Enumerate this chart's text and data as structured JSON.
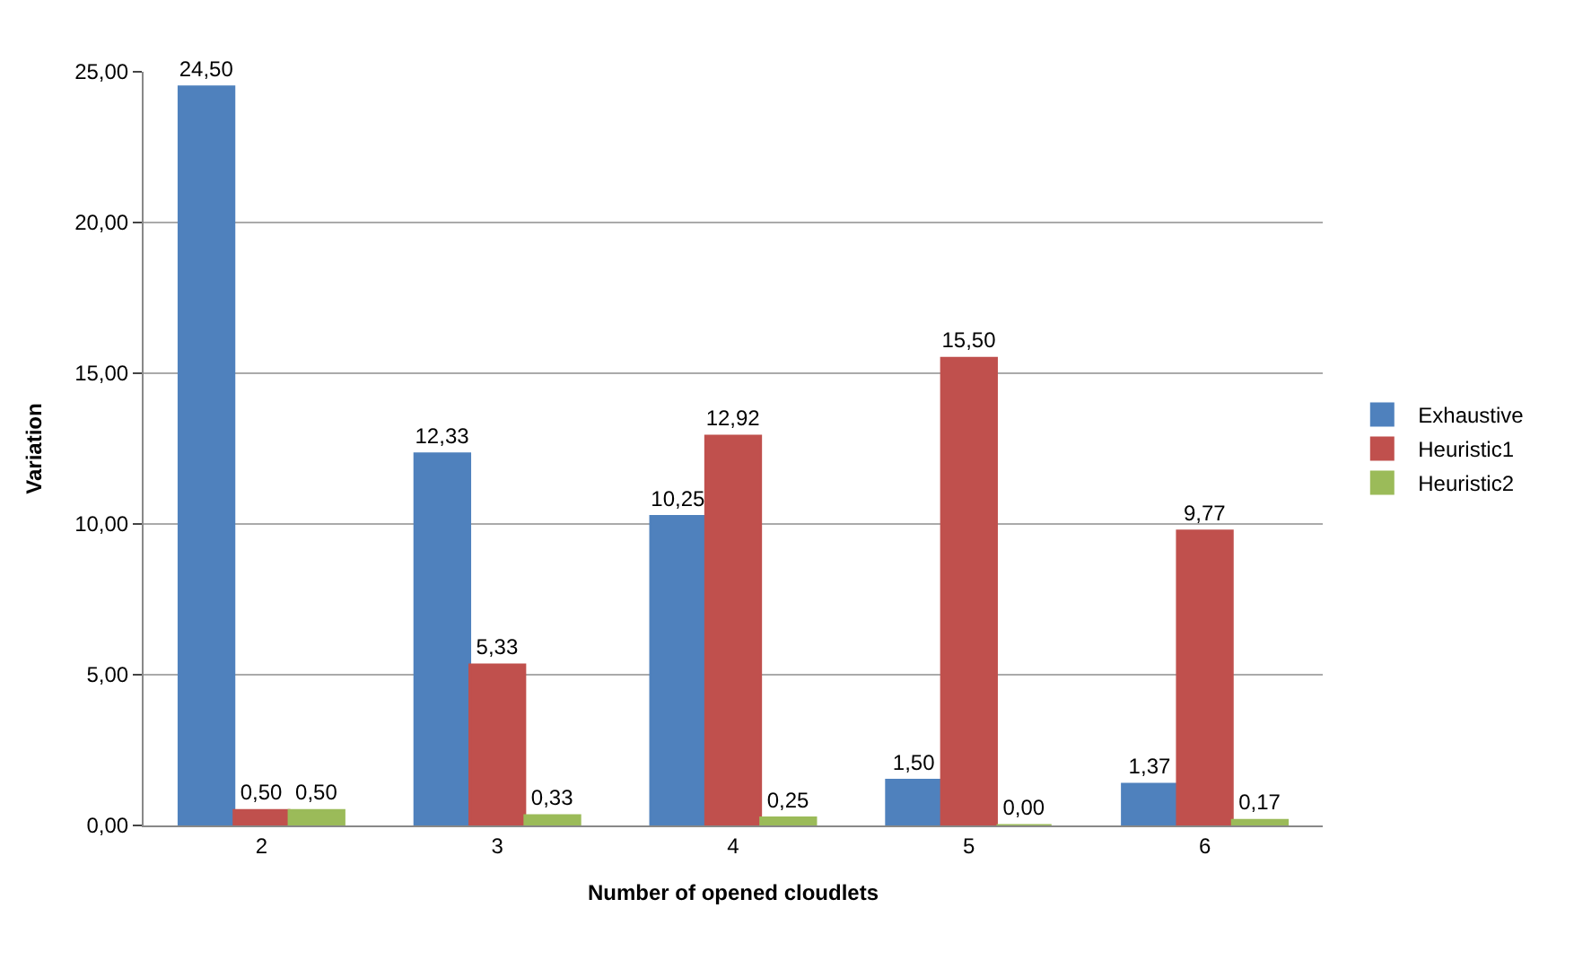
{
  "chart_data": {
    "type": "bar",
    "xlabel": "Number of opened cloudlets",
    "ylabel": "Variation",
    "categories": [
      "2",
      "3",
      "4",
      "5",
      "6"
    ],
    "series": [
      {
        "name": "Exhaustive",
        "color": "#4f81bd",
        "values": [
          24.5,
          12.33,
          10.25,
          1.5,
          1.37
        ],
        "value_labels": [
          "24,50",
          "12,33",
          "10,25",
          "1,50",
          "1,37"
        ]
      },
      {
        "name": "Heuristic1",
        "color": "#c0504d",
        "values": [
          0.5,
          5.33,
          12.92,
          15.5,
          9.77
        ],
        "value_labels": [
          "0,50",
          "5,33",
          "12,92",
          "15,50",
          "9,77"
        ]
      },
      {
        "name": "Heuristic2",
        "color": "#9bbb59",
        "values": [
          0.5,
          0.33,
          0.25,
          0.0,
          0.17
        ],
        "value_labels": [
          "0,50",
          "0,33",
          "0,25",
          "0,00",
          "0,17"
        ]
      }
    ],
    "ylim": [
      0,
      25
    ],
    "yticks": [
      {
        "value": 0,
        "label": "0,00"
      },
      {
        "value": 5,
        "label": "5,00"
      },
      {
        "value": 10,
        "label": "10,00"
      },
      {
        "value": 15,
        "label": "15,00"
      },
      {
        "value": 20,
        "label": "20,00"
      },
      {
        "value": 25,
        "label": "25,00"
      }
    ],
    "grid": "y",
    "legend": "right"
  }
}
